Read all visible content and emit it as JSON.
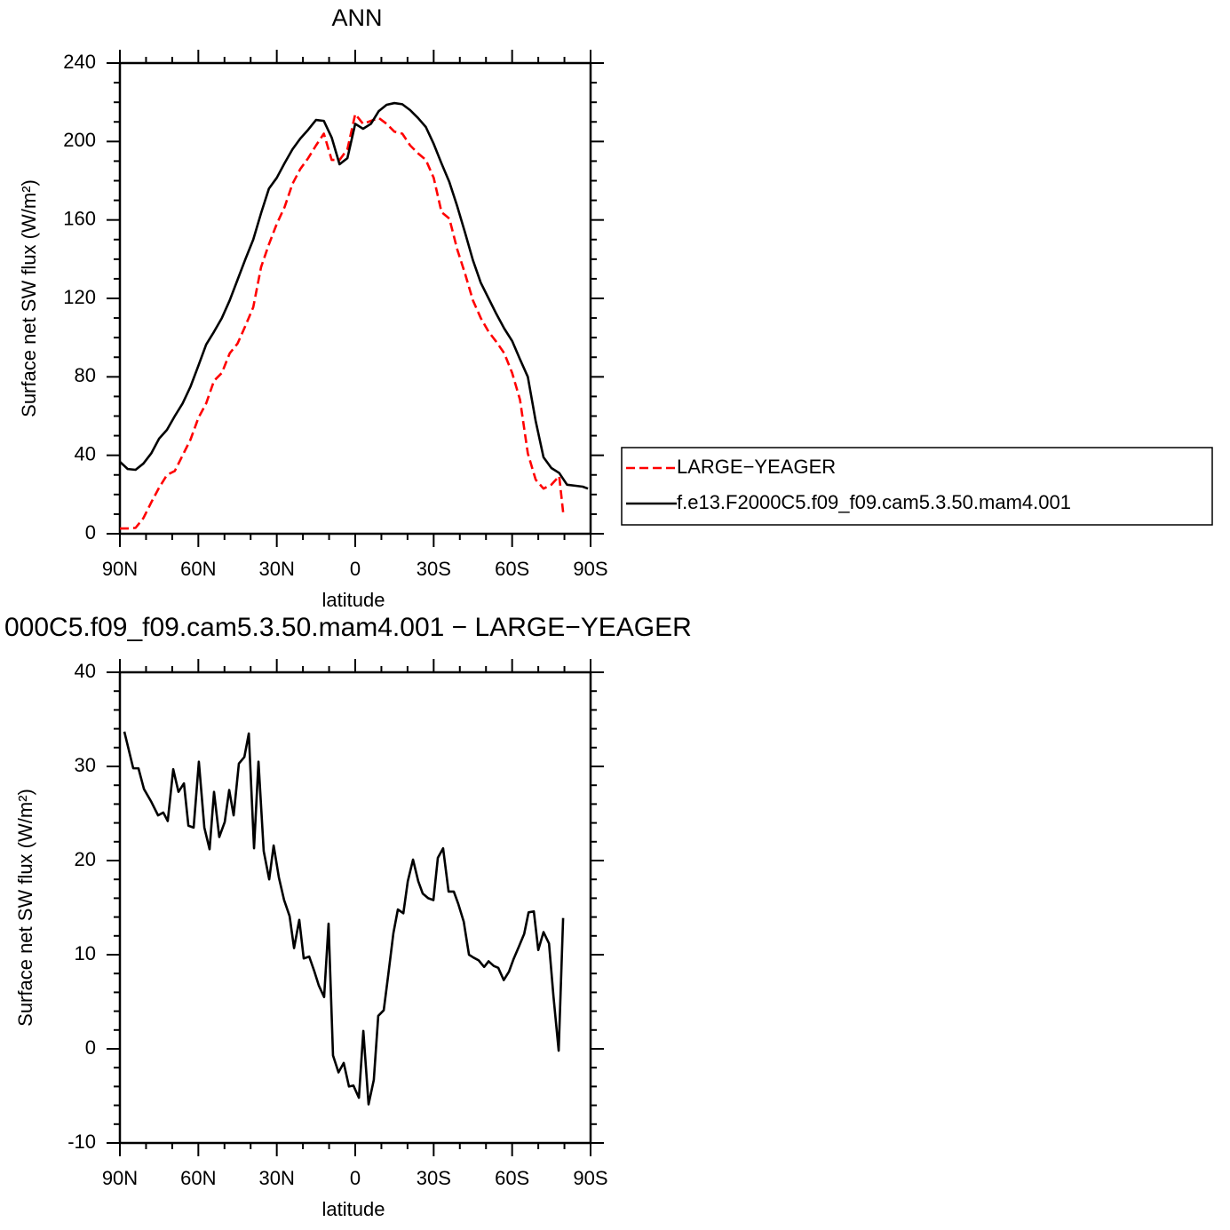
{
  "chart_data": [
    {
      "type": "line",
      "title": "ANN",
      "x_label": "latitude",
      "y_label": "Surface net SW flux (W/m²)",
      "xlim": [
        90,
        -90
      ],
      "ylim": [
        0,
        240
      ],
      "xticks": [
        {
          "value": 90,
          "label": "90N"
        },
        {
          "value": 60,
          "label": "60N"
        },
        {
          "value": 30,
          "label": "30N"
        },
        0,
        {
          "value": -30,
          "label": "30S"
        },
        {
          "value": -60,
          "label": "60S"
        },
        {
          "value": -90,
          "label": "90S"
        }
      ],
      "xminorticks": [
        80,
        70,
        50,
        40,
        20,
        10,
        -10,
        -20,
        -40,
        -50,
        -70,
        -80
      ],
      "yticks": [
        0,
        40,
        80,
        120,
        160,
        200,
        240
      ],
      "yminorticks": [
        10,
        20,
        30,
        50,
        60,
        70,
        90,
        100,
        110,
        130,
        140,
        150,
        170,
        180,
        190,
        210,
        220,
        230
      ],
      "legend": "right",
      "series": [
        {
          "name": "LARGE−YEAGER",
          "color": "#ff0000",
          "dashed": true,
          "x": [
            90,
            87,
            84,
            81,
            78,
            75,
            72,
            69,
            66,
            63,
            60,
            57,
            54,
            51,
            48,
            45,
            42,
            39,
            36,
            33,
            30,
            27,
            24,
            21,
            18,
            15,
            12,
            9,
            6,
            3,
            0,
            -3,
            -6,
            -9,
            -12,
            -15,
            -18,
            -21,
            -24,
            -27,
            -30,
            -33,
            -36,
            -39,
            -42,
            -45,
            -48,
            -51,
            -54,
            -57,
            -60,
            -63,
            -66,
            -69,
            -72,
            -75,
            -78,
            -79.5
          ],
          "values": [
            2.7,
            2.7,
            3,
            8,
            16,
            23.5,
            30,
            32,
            40,
            48,
            59,
            66.5,
            78,
            82,
            92,
            97,
            106,
            115.5,
            136,
            147.6,
            158,
            166.6,
            178.4,
            186,
            191.5,
            198,
            204,
            190.6,
            190.6,
            196,
            214,
            209,
            210.5,
            212,
            209,
            205,
            204,
            198,
            194,
            190.6,
            181.5,
            164,
            160.7,
            145,
            132.6,
            119,
            110,
            103,
            97.8,
            92,
            82,
            68.4,
            41,
            27.6,
            23,
            25,
            29.4,
            11
          ]
        },
        {
          "name": "f.e13.F2000C5.f09_f09.cam5.3.50.mam4.001",
          "color": "#000000",
          "dashed": false,
          "x": [
            90,
            87,
            84,
            81,
            78,
            75,
            72,
            69,
            66,
            63,
            60,
            57,
            54,
            51,
            48,
            45,
            42,
            39,
            36,
            33,
            30,
            27,
            24,
            21,
            18,
            15,
            12,
            9,
            6,
            3,
            0,
            -3,
            -6,
            -9,
            -12,
            -15,
            -18,
            -21,
            -24,
            -27,
            -30,
            -33,
            -36,
            -39,
            -42,
            -45,
            -48,
            -51,
            -54,
            -57,
            -60,
            -63,
            -66,
            -69,
            -72,
            -75,
            -78,
            -81,
            -84,
            -87,
            -89
          ],
          "values": [
            36.7,
            33,
            32.6,
            35.8,
            41,
            48.5,
            53,
            60,
            66.5,
            75,
            85.6,
            96.5,
            103,
            110,
            119,
            129.5,
            140,
            150,
            163.5,
            176,
            181.5,
            189,
            196,
            201.5,
            206,
            211,
            210.5,
            202,
            188.4,
            191.5,
            209,
            206.5,
            209,
            215.5,
            218.7,
            219.6,
            219,
            216,
            212,
            207.4,
            198.8,
            188.8,
            179.3,
            167,
            153.5,
            139.5,
            128,
            120,
            112,
            104.6,
            98.3,
            89,
            80,
            57.5,
            39,
            33.5,
            31,
            25,
            24.5,
            24,
            23
          ]
        }
      ]
    },
    {
      "type": "line",
      "title": "000C5.f09_f09.cam5.3.50.mam4.001 − LARGE−YEAGER",
      "x_label": "latitude",
      "y_label": "Surface net SW flux (W/m²)",
      "xlim": [
        90,
        -90
      ],
      "ylim": [
        -10,
        40
      ],
      "xticks": [
        {
          "value": 90,
          "label": "90N"
        },
        {
          "value": 60,
          "label": "60N"
        },
        {
          "value": 30,
          "label": "30N"
        },
        0,
        {
          "value": -30,
          "label": "30S"
        },
        {
          "value": -60,
          "label": "60S"
        },
        {
          "value": -90,
          "label": "90S"
        }
      ],
      "xminorticks": [
        80,
        70,
        50,
        40,
        20,
        10,
        -10,
        -20,
        -40,
        -50,
        -70,
        -80
      ],
      "yticks": [
        -10,
        0,
        10,
        20,
        30,
        40
      ],
      "yminorticks": [
        -8,
        -6,
        -4,
        -2,
        2,
        4,
        6,
        8,
        12,
        14,
        16,
        18,
        22,
        24,
        26,
        28,
        32,
        34,
        36,
        38
      ],
      "series": [
        {
          "color": "#000000",
          "dashed": false,
          "x": [
            88.3,
            84.9,
            82.9,
            80.8,
            78.1,
            75.4,
            73.4,
            71.7,
            69.6,
            67.6,
            65.5,
            63.8,
            61.8,
            59.8,
            57.7,
            55.7,
            54,
            52,
            49.9,
            48.2,
            46.5,
            44.5,
            42.4,
            40.7,
            38.7,
            37,
            35,
            32.9,
            31.2,
            29.2,
            27.2,
            25.1,
            23.4,
            21.4,
            19.7,
            17.6,
            15.6,
            13.9,
            11.9,
            10.2,
            8.5,
            6.4,
            4.4,
            2.4,
            0.7,
            -1.4,
            -3.1,
            -5.1,
            -7.1,
            -8.8,
            -10.9,
            -12.6,
            -14.6,
            -16.3,
            -18.4,
            -20.1,
            -22.1,
            -24.1,
            -25.8,
            -27.9,
            -29.9,
            -31.6,
            -33.6,
            -35.7,
            -37.7,
            -39.4,
            -41.5,
            -43.5,
            -45.2,
            -47.2,
            -49.3,
            -51,
            -53,
            -54.7,
            -56.8,
            -58.8,
            -60.5,
            -62.5,
            -64.6,
            -66.3,
            -68.3,
            -70,
            -72,
            -74.1,
            -75.8,
            -77.8,
            -79.5
          ],
          "values": [
            33.7,
            29.8,
            29.8,
            27.6,
            26.3,
            24.8,
            25.1,
            24.2,
            29.7,
            27.3,
            28.2,
            23.7,
            23.5,
            30.5,
            23.5,
            21.2,
            27.3,
            22.5,
            24.1,
            27.5,
            24.8,
            30.3,
            31,
            33.5,
            21.3,
            30.5,
            21,
            18,
            21.6,
            18.2,
            15.8,
            14.1,
            10.7,
            13.7,
            9.6,
            9.8,
            8.2,
            6.7,
            5.5,
            13.3,
            -0.7,
            -2.5,
            -1.5,
            -4,
            -3.9,
            -5.2,
            1.9,
            -5.9,
            -3.3,
            3.5,
            4.1,
            7.8,
            12.3,
            14.8,
            14.4,
            17.8,
            20.1,
            17.8,
            16.5,
            16,
            15.8,
            20.3,
            21.3,
            16.7,
            16.7,
            15.4,
            13.5,
            10,
            9.7,
            9.4,
            8.7,
            9.3,
            8.8,
            8.6,
            7.3,
            8.2,
            9.5,
            10.8,
            12.2,
            14.5,
            14.6,
            10.5,
            12.4,
            11.2,
            5.6,
            -0.2,
            13.9
          ]
        }
      ]
    }
  ]
}
